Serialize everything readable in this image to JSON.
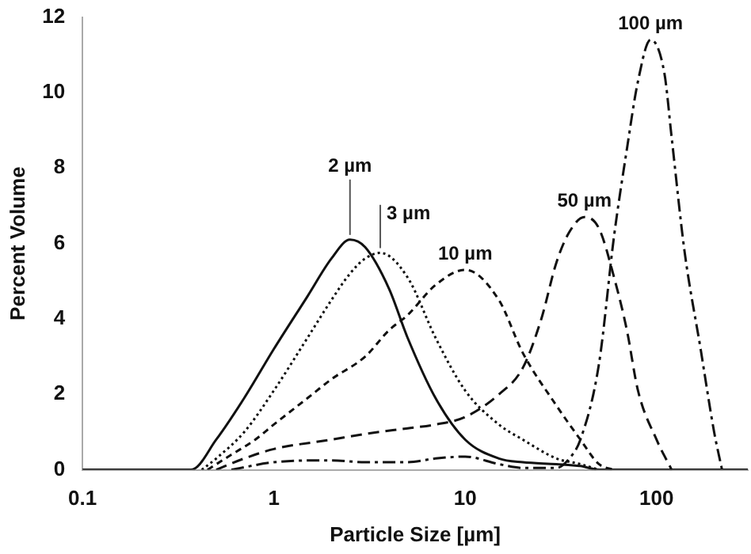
{
  "chart_data": {
    "type": "line",
    "xlabel": "Particle Size [µm]",
    "ylabel": "Percent Volume",
    "log": "x",
    "xlim": [
      0.1,
      300
    ],
    "xticks": [
      0.1,
      1,
      10,
      100
    ],
    "ylim": [
      0,
      12
    ],
    "yticks": [
      0,
      2,
      4,
      6,
      8,
      10,
      12
    ],
    "grid": false,
    "legend": false,
    "marker": "none",
    "series": [
      {
        "color": "#111111",
        "line_style": "solid",
        "x": [
          0.1,
          0.37,
          0.5,
          0.7,
          1,
          1.5,
          2,
          2.5,
          3,
          4,
          5,
          7,
          10,
          15,
          20,
          30,
          40,
          50,
          300
        ],
        "values": [
          0,
          0,
          0.8,
          1.9,
          3.2,
          4.6,
          5.6,
          6.1,
          5.9,
          4.8,
          3.5,
          1.9,
          0.8,
          0.3,
          0.2,
          0.15,
          0.1,
          0,
          0
        ]
      },
      {
        "color": "#111111",
        "line_style": "dotted",
        "x": [
          0.42,
          0.5,
          0.7,
          1,
          1.5,
          2,
          2.5,
          3,
          3.6,
          5,
          7,
          10,
          15,
          20,
          30,
          40,
          50
        ],
        "values": [
          0,
          0.3,
          1,
          2.1,
          3.5,
          4.5,
          5.2,
          5.6,
          5.75,
          5.1,
          3.5,
          2.1,
          1.2,
          0.8,
          0.3,
          0.15,
          0
        ]
      },
      {
        "color": "#111111",
        "line_style": "dashed",
        "x": [
          0.45,
          0.6,
          0.8,
          1,
          1.5,
          2,
          3,
          4,
          5,
          7,
          10,
          15,
          20,
          30,
          40,
          50,
          60
        ],
        "values": [
          0,
          0.4,
          0.8,
          1.2,
          1.9,
          2.4,
          3,
          3.7,
          4.1,
          4.9,
          5.3,
          4.5,
          3.1,
          1.7,
          0.8,
          0.15,
          0
        ]
      },
      {
        "color": "#111111",
        "line_style": "longdash",
        "x": [
          0.5,
          0.7,
          1,
          2,
          3,
          5,
          7,
          10,
          15,
          20,
          25,
          30,
          35,
          42,
          50,
          60,
          70,
          80,
          100,
          120
        ],
        "values": [
          0,
          0.3,
          0.55,
          0.8,
          0.95,
          1.1,
          1.2,
          1.4,
          2,
          2.7,
          4,
          5.5,
          6.3,
          6.7,
          6.4,
          5.1,
          3.7,
          2.1,
          0.8,
          0
        ]
      },
      {
        "color": "#111111",
        "line_style": "dashdot",
        "x": [
          0.6,
          1,
          2,
          3,
          5,
          7,
          10,
          15,
          20,
          30,
          35,
          40,
          50,
          60,
          70,
          80,
          93,
          110,
          120,
          140,
          170,
          200,
          220
        ],
        "values": [
          0,
          0.2,
          0.25,
          0.2,
          0.2,
          0.3,
          0.35,
          0.15,
          0.05,
          0.05,
          0.3,
          0.8,
          2.8,
          6.2,
          8.5,
          10.3,
          11.4,
          10.5,
          8.8,
          5.8,
          3.2,
          1,
          0
        ]
      }
    ],
    "annotations": [
      {
        "text": "2 µm",
        "x": 2.5,
        "y": 6.1
      },
      {
        "text": "3 µm",
        "x": 3.6,
        "y": 5.75
      },
      {
        "text": "10 µm",
        "x": 10,
        "y": 5.3
      },
      {
        "text": "50 µm",
        "x": 42,
        "y": 6.7
      },
      {
        "text": "100 µm",
        "x": 93,
        "y": 11.4
      }
    ]
  }
}
